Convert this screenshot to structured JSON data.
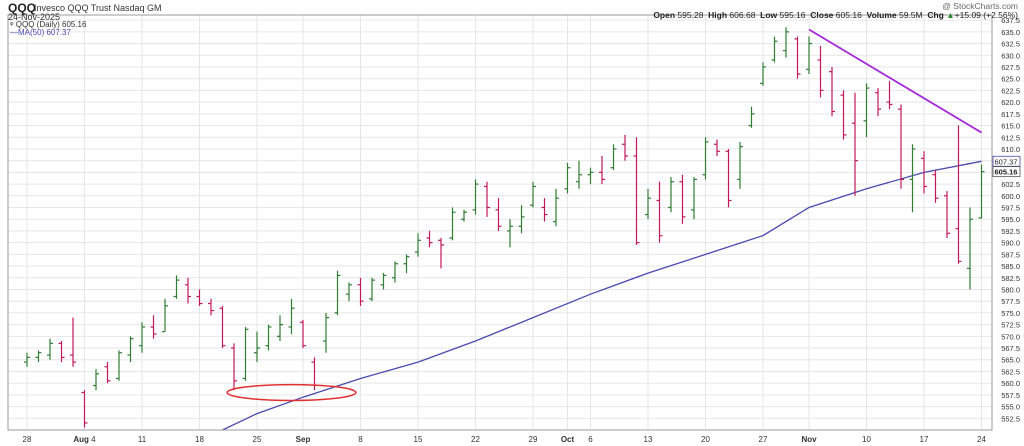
{
  "header": {
    "symbol": "QQQ",
    "description": "Invesco QQQ Trust Nasdaq GM",
    "date": "24-Nov-2025",
    "copyright": "@ StockCharts.com",
    "legend_price": "QQQ (Daily) 605.16",
    "legend_ma": "MA(50) 607.37",
    "open_label": "Open",
    "open": "595.28",
    "high_label": "High",
    "high": "606.68",
    "low_label": "Low",
    "low": "595.16",
    "close_label": "Close",
    "close": "605.16",
    "volume_label": "Volume",
    "volume": "59.5M",
    "chg_label": "Chg",
    "chg": "+15.09 (+2.56%)",
    "chg_arrow": "▲"
  },
  "colors": {
    "up": "#2e7d32",
    "down": "#c2185b",
    "ma": "#4a4ab0",
    "trendline": "#a52ad8",
    "circle": "#e03030",
    "grid": "#e6e6e6"
  },
  "chart_data": {
    "type": "ohlc",
    "title": "QQQ (Daily)",
    "ylim": [
      550,
      637.5
    ],
    "y_axis_position": "right",
    "y_ticks": [
      552.5,
      555,
      557.5,
      560,
      562.5,
      565,
      567.5,
      570,
      572.5,
      575,
      577.5,
      580,
      582.5,
      585,
      587.5,
      590,
      592.5,
      595,
      597.5,
      600,
      602.5,
      605,
      607.5,
      610,
      612.5,
      615,
      617.5,
      620,
      622.5,
      625,
      627.5,
      630,
      632.5,
      635,
      637.5
    ],
    "y_tick_labels": [
      "552.5",
      "555.0",
      "557.5",
      "560.0",
      "562.5",
      "565.0",
      "567.5",
      "570.0",
      "572.5",
      "575.0",
      "577.5",
      "580.0",
      "582.5",
      "585.0",
      "587.5",
      "590.0",
      "592.5",
      "595.0",
      "597.5",
      "600.0",
      "602.5",
      "605.0",
      "607.5",
      "610.0",
      "612.5",
      "615.0",
      "617.5",
      "620.0",
      "622.5",
      "625.0",
      "627.5",
      "630.0",
      "632.5",
      "635.0",
      "637.5"
    ],
    "x_labels": [
      {
        "label": "28",
        "index": 0
      },
      {
        "label": "Aug",
        "label2": "4",
        "index": 5
      },
      {
        "label": "11",
        "index": 10
      },
      {
        "label": "18",
        "index": 15
      },
      {
        "label": "25",
        "index": 20
      },
      {
        "label": "Sep",
        "index": 24
      },
      {
        "label": "8",
        "index": 29
      },
      {
        "label": "15",
        "index": 34
      },
      {
        "label": "22",
        "index": 39
      },
      {
        "label": "29",
        "index": 44
      },
      {
        "label": "Oct",
        "index": 47
      },
      {
        "label": "6",
        "index": 49
      },
      {
        "label": "13",
        "index": 54
      },
      {
        "label": "20",
        "index": 59
      },
      {
        "label": "27",
        "index": 64
      },
      {
        "label": "Nov",
        "index": 68
      },
      {
        "label": "10",
        "index": 73
      },
      {
        "label": "17",
        "index": 78
      },
      {
        "label": "24",
        "index": 83
      }
    ],
    "bars": [
      {
        "o": 564.5,
        "h": 566.5,
        "l": 563.5,
        "c": 565.5
      },
      {
        "o": 565.5,
        "h": 567.0,
        "l": 564.5,
        "c": 566.5
      },
      {
        "o": 566.0,
        "h": 569.5,
        "l": 565.0,
        "c": 568.5
      },
      {
        "o": 568.5,
        "h": 569.0,
        "l": 564.5,
        "c": 565.5
      },
      {
        "o": 566.0,
        "h": 574.0,
        "l": 563.5,
        "c": 564.5
      },
      {
        "o": 558.0,
        "h": 558.5,
        "l": 550.5,
        "c": 551.5
      },
      {
        "o": 559.5,
        "h": 563.0,
        "l": 558.5,
        "c": 562.0
      },
      {
        "o": 563.5,
        "h": 564.5,
        "l": 560.0,
        "c": 560.5
      },
      {
        "o": 561.0,
        "h": 567.0,
        "l": 560.5,
        "c": 566.5
      },
      {
        "o": 566.0,
        "h": 570.0,
        "l": 564.5,
        "c": 569.5
      },
      {
        "o": 568.0,
        "h": 573.0,
        "l": 566.5,
        "c": 572.0
      },
      {
        "o": 572.0,
        "h": 574.5,
        "l": 569.5,
        "c": 570.5
      },
      {
        "o": 571.0,
        "h": 578.0,
        "l": 571.0,
        "c": 576.5
      },
      {
        "o": 578.5,
        "h": 583.0,
        "l": 578.0,
        "c": 582.0
      },
      {
        "o": 581.0,
        "h": 582.5,
        "l": 577.0,
        "c": 578.5
      },
      {
        "o": 578.5,
        "h": 580.0,
        "l": 576.5,
        "c": 577.0
      },
      {
        "o": 577.0,
        "h": 578.0,
        "l": 574.5,
        "c": 575.5
      },
      {
        "o": 576.0,
        "h": 576.5,
        "l": 567.5,
        "c": 568.0
      },
      {
        "o": 567.5,
        "h": 568.5,
        "l": 558.5,
        "c": 560.5
      },
      {
        "o": 561.0,
        "h": 572.0,
        "l": 560.5,
        "c": 571.5
      },
      {
        "o": 566.5,
        "h": 571.0,
        "l": 564.5,
        "c": 567.5
      },
      {
        "o": 568.0,
        "h": 572.5,
        "l": 567.0,
        "c": 572.0
      },
      {
        "o": 570.0,
        "h": 574.5,
        "l": 569.0,
        "c": 572.5
      },
      {
        "o": 572.0,
        "h": 578.0,
        "l": 570.5,
        "c": 576.0
      },
      {
        "o": 573.0,
        "h": 573.5,
        "l": 567.5,
        "c": 568.0
      },
      {
        "o": 564.5,
        "h": 565.5,
        "l": 558.5,
        "c": 559.5
      },
      {
        "o": 569.0,
        "h": 575.0,
        "l": 566.5,
        "c": 574.0
      },
      {
        "o": 575.0,
        "h": 584.0,
        "l": 574.5,
        "c": 583.0
      },
      {
        "o": 579.0,
        "h": 581.5,
        "l": 577.5,
        "c": 581.0
      },
      {
        "o": 581.0,
        "h": 582.5,
        "l": 576.5,
        "c": 577.5
      },
      {
        "o": 578.0,
        "h": 582.5,
        "l": 577.5,
        "c": 582.0
      },
      {
        "o": 581.0,
        "h": 583.5,
        "l": 580.0,
        "c": 583.0
      },
      {
        "o": 582.5,
        "h": 586.0,
        "l": 581.5,
        "c": 585.5
      },
      {
        "o": 585.5,
        "h": 587.5,
        "l": 583.5,
        "c": 587.0
      },
      {
        "o": 588.0,
        "h": 592.0,
        "l": 587.0,
        "c": 590.5
      },
      {
        "o": 591.0,
        "h": 592.5,
        "l": 589.0,
        "c": 590.0
      },
      {
        "o": 590.5,
        "h": 591.0,
        "l": 584.5,
        "c": 589.5
      },
      {
        "o": 591.0,
        "h": 597.5,
        "l": 590.5,
        "c": 596.5
      },
      {
        "o": 595.0,
        "h": 597.0,
        "l": 594.5,
        "c": 596.5
      },
      {
        "o": 597.0,
        "h": 603.5,
        "l": 596.0,
        "c": 602.5
      },
      {
        "o": 602.0,
        "h": 603.0,
        "l": 595.5,
        "c": 597.5
      },
      {
        "o": 597.0,
        "h": 599.5,
        "l": 592.5,
        "c": 593.5
      },
      {
        "o": 592.5,
        "h": 595.0,
        "l": 589.0,
        "c": 593.5
      },
      {
        "o": 593.5,
        "h": 598.0,
        "l": 592.0,
        "c": 595.5
      },
      {
        "o": 598.0,
        "h": 603.0,
        "l": 597.5,
        "c": 602.0
      },
      {
        "o": 597.5,
        "h": 599.5,
        "l": 594.5,
        "c": 596.0
      },
      {
        "o": 594.5,
        "h": 601.5,
        "l": 593.5,
        "c": 599.5
      },
      {
        "o": 601.5,
        "h": 607.0,
        "l": 600.5,
        "c": 606.0
      },
      {
        "o": 603.0,
        "h": 607.5,
        "l": 601.5,
        "c": 604.5
      },
      {
        "o": 604.5,
        "h": 606.0,
        "l": 602.5,
        "c": 605.0
      },
      {
        "o": 605.0,
        "h": 608.5,
        "l": 602.5,
        "c": 603.5
      },
      {
        "o": 606.0,
        "h": 611.0,
        "l": 605.5,
        "c": 610.0
      },
      {
        "o": 611.0,
        "h": 613.0,
        "l": 607.5,
        "c": 608.5
      },
      {
        "o": 608.5,
        "h": 612.5,
        "l": 589.5,
        "c": 590.0
      },
      {
        "o": 596.0,
        "h": 601.5,
        "l": 595.0,
        "c": 599.5
      },
      {
        "o": 599.0,
        "h": 603.0,
        "l": 590.0,
        "c": 591.5
      },
      {
        "o": 597.5,
        "h": 604.0,
        "l": 596.5,
        "c": 603.0
      },
      {
        "o": 603.0,
        "h": 604.5,
        "l": 594.0,
        "c": 595.5
      },
      {
        "o": 597.0,
        "h": 604.0,
        "l": 595.0,
        "c": 603.5
      },
      {
        "o": 604.5,
        "h": 612.5,
        "l": 603.5,
        "c": 611.5
      },
      {
        "o": 611.0,
        "h": 612.0,
        "l": 608.5,
        "c": 609.5
      },
      {
        "o": 609.5,
        "h": 610.0,
        "l": 597.5,
        "c": 599.0
      },
      {
        "o": 603.5,
        "h": 611.5,
        "l": 601.5,
        "c": 610.5
      },
      {
        "o": 615.0,
        "h": 619.0,
        "l": 614.5,
        "c": 617.5
      },
      {
        "o": 624.0,
        "h": 628.5,
        "l": 623.5,
        "c": 627.5
      },
      {
        "o": 629.0,
        "h": 634.0,
        "l": 628.5,
        "c": 633.0
      },
      {
        "o": 631.0,
        "h": 636.0,
        "l": 629.5,
        "c": 635.0
      },
      {
        "o": 633.5,
        "h": 634.0,
        "l": 625.0,
        "c": 626.0
      },
      {
        "o": 627.0,
        "h": 634.0,
        "l": 626.0,
        "c": 632.5
      },
      {
        "o": 629.0,
        "h": 632.0,
        "l": 621.0,
        "c": 622.5
      },
      {
        "o": 626.5,
        "h": 627.5,
        "l": 617.0,
        "c": 618.0
      },
      {
        "o": 621.5,
        "h": 622.5,
        "l": 612.0,
        "c": 613.0
      },
      {
        "o": 615.5,
        "h": 622.0,
        "l": 600.0,
        "c": 607.5
      },
      {
        "o": 616.0,
        "h": 624.0,
        "l": 612.5,
        "c": 623.0
      },
      {
        "o": 622.0,
        "h": 623.0,
        "l": 617.0,
        "c": 618.5
      },
      {
        "o": 620.0,
        "h": 624.5,
        "l": 618.5,
        "c": 619.5
      },
      {
        "o": 618.5,
        "h": 619.5,
        "l": 601.5,
        "c": 603.5
      },
      {
        "o": 603.5,
        "h": 611.0,
        "l": 596.5,
        "c": 610.0
      },
      {
        "o": 608.0,
        "h": 609.5,
        "l": 600.5,
        "c": 602.0
      },
      {
        "o": 604.5,
        "h": 605.5,
        "l": 598.5,
        "c": 599.5
      },
      {
        "o": 600.0,
        "h": 601.0,
        "l": 591.0,
        "c": 592.0
      },
      {
        "o": 593.0,
        "h": 615.0,
        "l": 585.5,
        "c": 586.0
      },
      {
        "o": 584.5,
        "h": 597.5,
        "l": 580.0,
        "c": 595.0
      },
      {
        "o": 595.28,
        "h": 606.68,
        "l": 595.16,
        "c": 605.16
      }
    ],
    "ma50": {
      "name": "MA(50)",
      "last": 607.37,
      "points": [
        {
          "index": 17,
          "value": 550.0
        },
        {
          "index": 20,
          "value": 553.5
        },
        {
          "index": 24,
          "value": 557.0
        },
        {
          "index": 29,
          "value": 561.0
        },
        {
          "index": 34,
          "value": 564.5
        },
        {
          "index": 39,
          "value": 569.0
        },
        {
          "index": 44,
          "value": 574.0
        },
        {
          "index": 49,
          "value": 579.0
        },
        {
          "index": 54,
          "value": 583.5
        },
        {
          "index": 59,
          "value": 587.5
        },
        {
          "index": 64,
          "value": 591.5
        },
        {
          "index": 68,
          "value": 597.5
        },
        {
          "index": 73,
          "value": 601.5
        },
        {
          "index": 78,
          "value": 605.0
        },
        {
          "index": 83,
          "value": 607.37
        }
      ]
    },
    "annotations": {
      "trendline": {
        "from": {
          "index": 68,
          "value": 635.5
        },
        "to": {
          "index": 83,
          "value": 613.5
        }
      },
      "circle": {
        "center_index": 23.0,
        "center_value": 558.0,
        "radius_bars": 5.6,
        "radius_value": 1.7
      }
    },
    "right_labels": {
      "ma_value": "607.37",
      "close_value": "605.16"
    }
  }
}
